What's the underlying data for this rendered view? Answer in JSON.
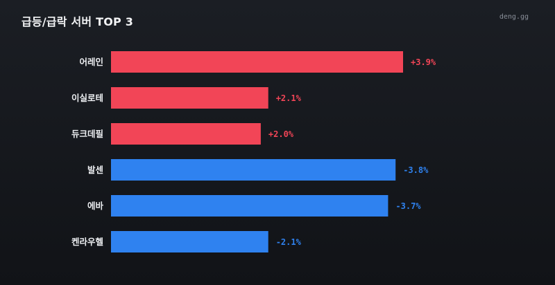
{
  "header": {
    "title": "급등/급락 서버 TOP 3",
    "source": "deng.gg"
  },
  "colors": {
    "rise": "#f24557",
    "fall": "#2f82f0",
    "background": "#15171c"
  },
  "chart_data": {
    "type": "bar",
    "orientation": "horizontal",
    "title": "급등/급락 서버 TOP 3",
    "categories": [
      "어레인",
      "이실로테",
      "듀크데필",
      "발센",
      "에바",
      "켄라우헬"
    ],
    "values": [
      3.9,
      2.1,
      2.0,
      -3.8,
      -3.7,
      -2.1
    ],
    "labels": [
      "+3.9%",
      "+2.1%",
      "+2.0%",
      "-3.8%",
      "-3.7%",
      "-2.1%"
    ],
    "xlabel": "",
    "ylabel": "",
    "grid": false
  }
}
